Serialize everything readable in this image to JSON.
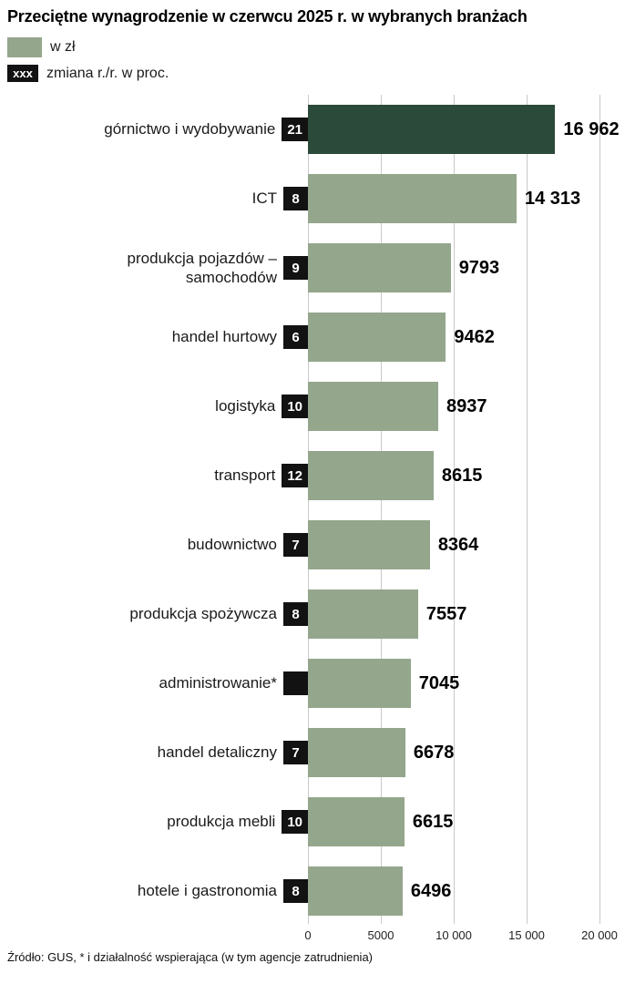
{
  "title": "Przeciętne wynagrodzenie w czerwcu 2025 r. w wybranych branżach",
  "legend": {
    "bar_label": "w zł",
    "badge_symbol": "xxx",
    "badge_label": "zmiana r./r. w proc."
  },
  "colors": {
    "bar": "#94a68c",
    "bar_highlight": "#2b4a39",
    "badge_bg": "#121212",
    "badge_fg": "#ffffff",
    "grid": "#c9c9c9"
  },
  "footer": "Źródło: GUS, * i działalność wspierająca (w tym agencje zatrudnienia)",
  "chart_data": {
    "type": "bar",
    "orientation": "horizontal",
    "title": "Przeciętne wynagrodzenie w czerwcu 2025 r. w wybranych branżach",
    "categories": [
      "górnictwo i wydobywanie",
      "ICT",
      "produkcja pojazdów – samochodów",
      "handel hurtowy",
      "logistyka",
      "transport",
      "budownictwo",
      "produkcja spożywcza",
      "administrowanie*",
      "handel detaliczny",
      "produkcja mebli",
      "hotele i gastronomia"
    ],
    "series": [
      {
        "name": "w zł",
        "values": [
          16962,
          14313,
          9793,
          9462,
          8937,
          8615,
          8364,
          7557,
          7045,
          6678,
          6615,
          6496
        ]
      },
      {
        "name": "zmiana r./r. w proc.",
        "values": [
          21,
          8,
          9,
          6,
          10,
          12,
          7,
          8,
          null,
          7,
          10,
          8
        ]
      }
    ],
    "value_labels": [
      "16 962",
      "14 313",
      "9793",
      "9462",
      "8937",
      "8615",
      "8364",
      "7557",
      "7045",
      "6678",
      "6615",
      "6496"
    ],
    "x_ticks": [
      "0",
      "5000",
      "10 000",
      "15 000",
      "20 000"
    ],
    "xlim": [
      0,
      20000
    ],
    "grid": true,
    "highlight_index": 0,
    "legend_position": "top"
  }
}
